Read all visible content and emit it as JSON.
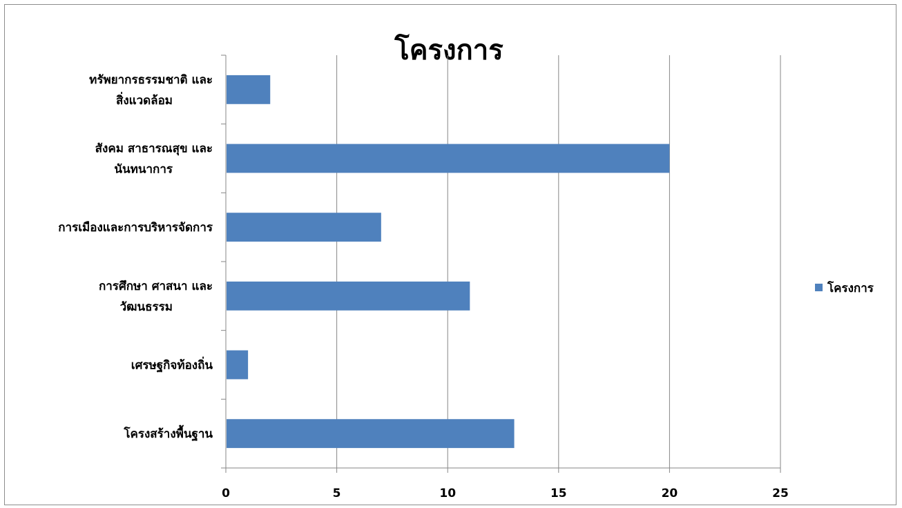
{
  "chart_data": {
    "type": "bar",
    "orientation": "horizontal",
    "title": "โครงการ",
    "categories": [
      "ทรัพยากรธรรมชาติ และ สิ่งแวดล้อม",
      "สังคม สาธารณสุข และ นันทนาการ",
      "การเมืองและการบริหารจัดการ",
      "การศึกษา ศาสนา และ วัฒนธรรม",
      "เศรษฐกิจท้องถิ่น",
      "โครงสร้างพื้นฐาน"
    ],
    "series": [
      {
        "name": "โครงการ",
        "values": [
          2,
          20,
          7,
          11,
          1,
          13
        ],
        "color": "#4f81bd"
      }
    ],
    "xlim": [
      0,
      25
    ],
    "xticks": [
      0,
      5,
      10,
      15,
      20,
      25
    ],
    "grid": true,
    "legend": "right"
  }
}
